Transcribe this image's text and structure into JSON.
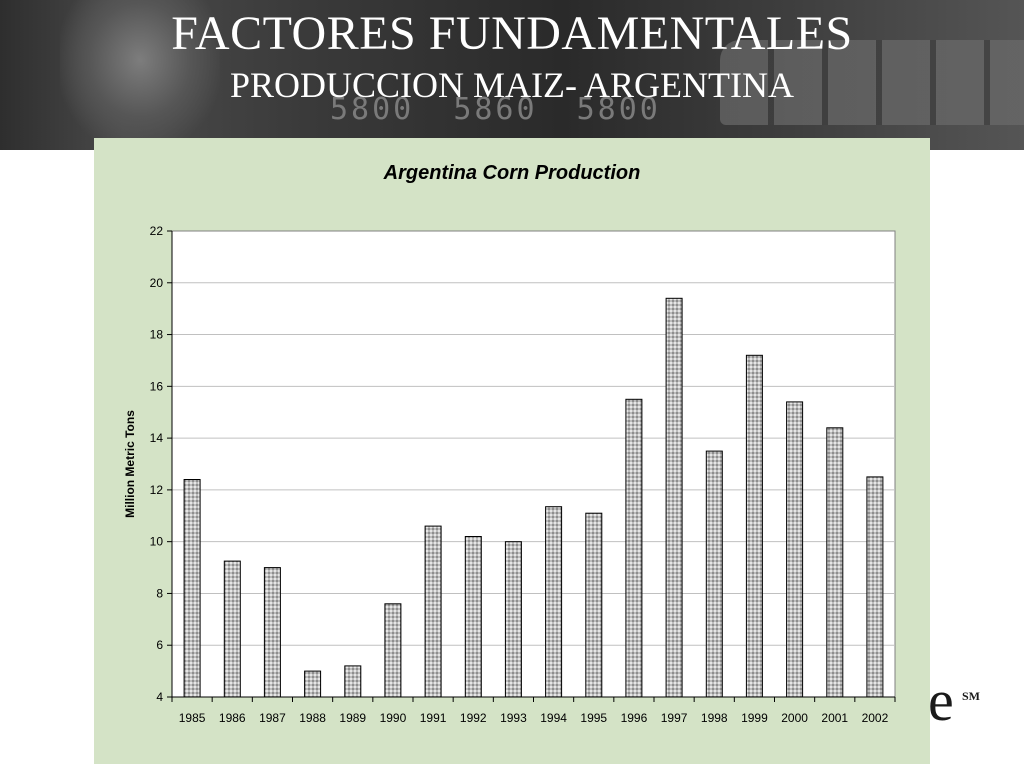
{
  "header": {
    "title": "FACTORES FUNDAMENTALES",
    "subtitle": "PRODUCCION MAIZ- ARGENTINA",
    "ticker_values": [
      "5800",
      "5860",
      "5800"
    ]
  },
  "logo": {
    "letter": "e",
    "mark": "SM"
  },
  "colors": {
    "panel": "#d4e3c6",
    "bar_fill": "#c8c8c8",
    "bar_stroke": "#000000",
    "grid": "#c0c0c0"
  },
  "chart_data": {
    "type": "bar",
    "title": "Argentina Corn Production",
    "xlabel": "",
    "ylabel": "Million Metric Tons",
    "ylim": [
      4,
      22
    ],
    "yticks": [
      4,
      6,
      8,
      10,
      12,
      14,
      16,
      18,
      20,
      22
    ],
    "grid": true,
    "categories": [
      "1985",
      "1986",
      "1987",
      "1988",
      "1989",
      "1990",
      "1991",
      "1992",
      "1993",
      "1994",
      "1995",
      "1996",
      "1997",
      "1998",
      "1999",
      "2000",
      "2001",
      "2002"
    ],
    "values": [
      12.4,
      9.25,
      9.0,
      5.0,
      5.2,
      7.6,
      10.6,
      10.2,
      10.0,
      11.35,
      11.1,
      15.5,
      19.4,
      13.5,
      17.2,
      15.4,
      14.4,
      12.5
    ]
  }
}
